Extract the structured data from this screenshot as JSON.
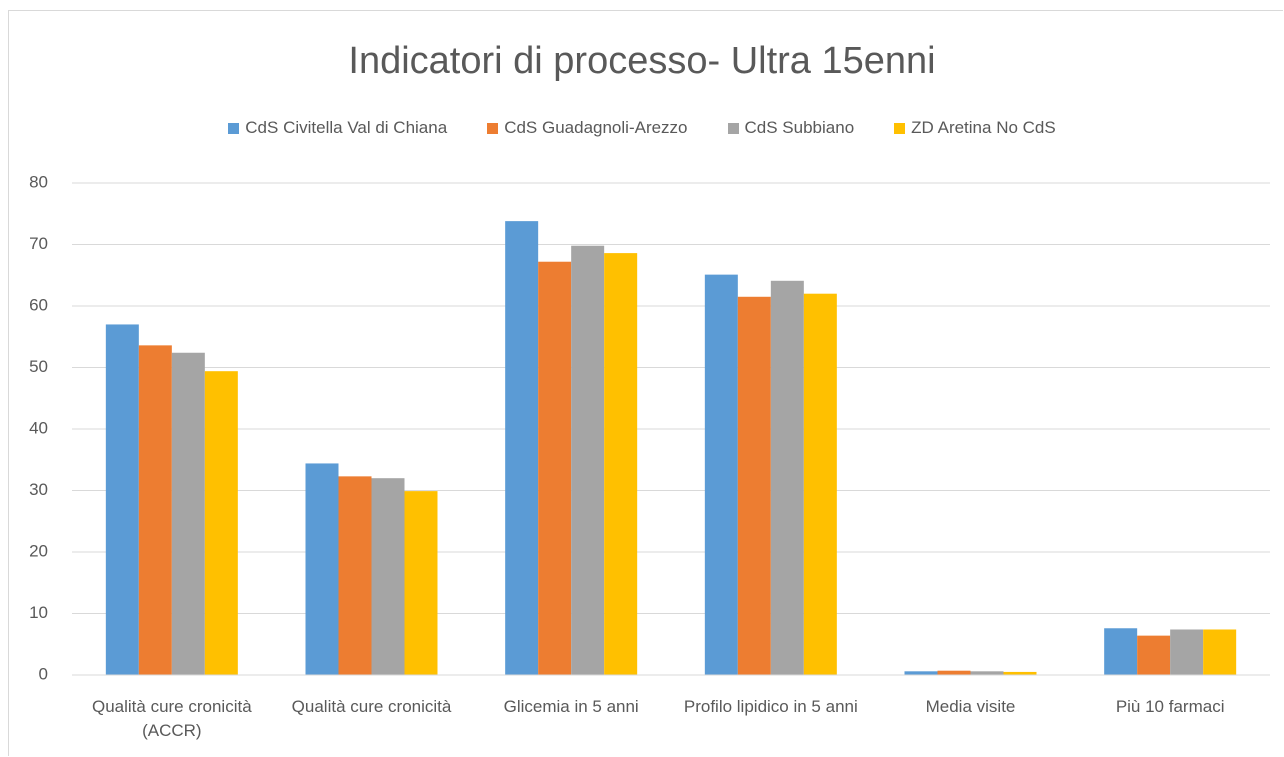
{
  "chart_data": {
    "type": "bar",
    "title": "Indicatori di processo- Ultra 15enni",
    "categories": [
      "Qualità cure cronicità (ACCR)",
      "Qualità cure cronicità",
      "Glicemia in 5 anni",
      "Profilo lipidico in 5 anni",
      "Media visite",
      "Più 10 farmaci"
    ],
    "series": [
      {
        "name": "CdS Civitella Val di Chiana",
        "color": "#5b9bd5",
        "values": [
          57.0,
          34.4,
          73.8,
          65.1,
          0.6,
          7.6
        ]
      },
      {
        "name": "CdS Guadagnoli-Arezzo",
        "color": "#ed7d31",
        "values": [
          53.6,
          32.3,
          67.2,
          61.5,
          0.7,
          6.4
        ]
      },
      {
        "name": "CdS Subbiano",
        "color": "#a5a5a5",
        "values": [
          52.4,
          32.0,
          69.8,
          64.1,
          0.6,
          7.4
        ]
      },
      {
        "name": "ZD Aretina No CdS",
        "color": "#ffc000",
        "values": [
          49.4,
          29.9,
          68.6,
          62.0,
          0.5,
          7.4
        ]
      }
    ],
    "ylim": [
      0,
      80
    ],
    "yticks": [
      0,
      10,
      20,
      30,
      40,
      50,
      60,
      70,
      80
    ],
    "grid": true,
    "legend": "top"
  }
}
